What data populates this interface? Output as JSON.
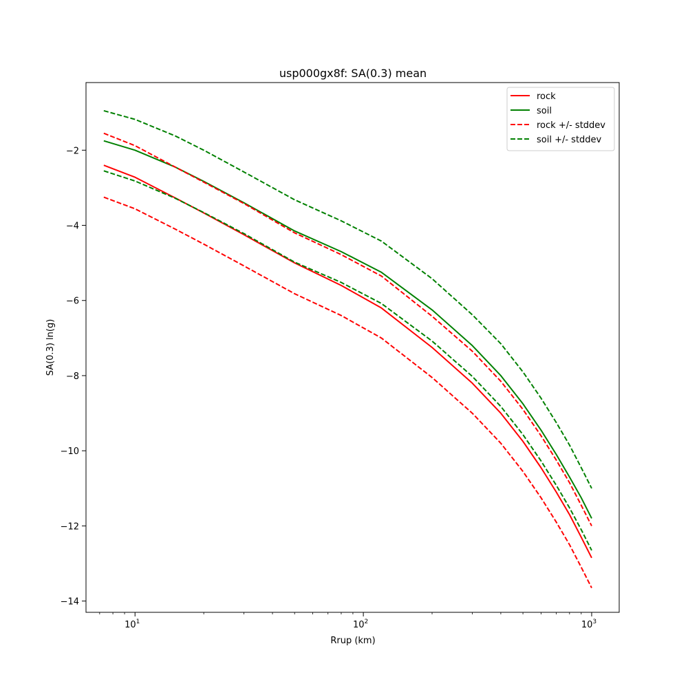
{
  "chart_data": {
    "type": "line",
    "title": "usp000gx8f: SA(0.3) mean",
    "xlabel": "Rrup (km)",
    "ylabel": "SA(0.3) ln(g)",
    "xscale": "log",
    "xlim": [
      6.1,
      1320
    ],
    "ylim": [
      -14.3,
      -0.2
    ],
    "x_ticks": [
      {
        "base": "10",
        "exp": "1",
        "value": 10
      },
      {
        "base": "10",
        "exp": "2",
        "value": 100
      },
      {
        "base": "10",
        "exp": "3",
        "value": 1000
      }
    ],
    "y_ticks": [
      {
        "label": "−2",
        "value": -2
      },
      {
        "label": "−4",
        "value": -4
      },
      {
        "label": "−6",
        "value": -6
      },
      {
        "label": "−8",
        "value": -8
      },
      {
        "label": "−10",
        "value": -10
      },
      {
        "label": "−12",
        "value": -12
      },
      {
        "label": "−14",
        "value": -14
      }
    ],
    "grid": false,
    "legend_position": "top-right",
    "x": [
      7.3,
      10,
      15,
      20,
      30,
      50,
      80,
      120,
      200,
      300,
      400,
      500,
      600,
      700,
      800,
      900,
      1000
    ],
    "series": [
      {
        "name": "rock",
        "color": "#ff0000",
        "style": "solid",
        "values": [
          -2.4,
          -2.72,
          -3.27,
          -3.67,
          -4.25,
          -5.0,
          -5.6,
          -6.2,
          -7.25,
          -8.2,
          -9.0,
          -9.75,
          -10.45,
          -11.1,
          -11.7,
          -12.3,
          -12.85
        ]
      },
      {
        "name": "soil",
        "color": "#008000",
        "style": "solid",
        "values": [
          -1.75,
          -2.0,
          -2.45,
          -2.83,
          -3.4,
          -4.15,
          -4.7,
          -5.25,
          -6.25,
          -7.2,
          -8.0,
          -8.75,
          -9.45,
          -10.1,
          -10.7,
          -11.25,
          -11.8
        ]
      },
      {
        "name": "rock +/- stddev",
        "color": "#ff0000",
        "style": "dashed",
        "values": [
          -1.55,
          -1.88,
          -2.45,
          -2.85,
          -3.42,
          -4.2,
          -4.78,
          -5.35,
          -6.42,
          -7.35,
          -8.15,
          -8.9,
          -9.6,
          -10.25,
          -10.85,
          -11.45,
          -12.0
        ]
      },
      {
        "name": "",
        "color": "#ff0000",
        "style": "dashed",
        "values": [
          -3.25,
          -3.56,
          -4.1,
          -4.5,
          -5.08,
          -5.82,
          -6.4,
          -7.0,
          -8.05,
          -9.0,
          -9.8,
          -10.55,
          -11.25,
          -11.9,
          -12.5,
          -13.1,
          -13.65
        ]
      },
      {
        "name": "soil +/- stddev",
        "color": "#008000",
        "style": "dashed",
        "values": [
          -0.95,
          -1.18,
          -1.62,
          -2.0,
          -2.58,
          -3.32,
          -3.88,
          -4.42,
          -5.42,
          -6.38,
          -7.15,
          -7.9,
          -8.6,
          -9.25,
          -9.85,
          -10.45,
          -11.0
        ]
      },
      {
        "name": "",
        "color": "#008000",
        "style": "dashed",
        "values": [
          -2.55,
          -2.82,
          -3.28,
          -3.66,
          -4.22,
          -4.98,
          -5.52,
          -6.08,
          -7.08,
          -8.02,
          -8.82,
          -9.57,
          -10.27,
          -10.92,
          -11.52,
          -12.1,
          -12.65
        ]
      }
    ]
  }
}
